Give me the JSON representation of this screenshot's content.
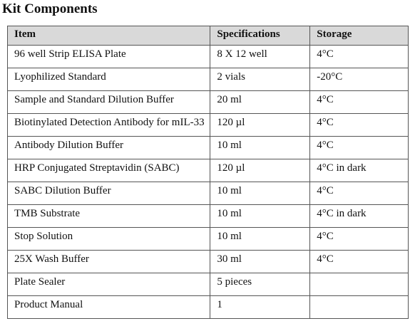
{
  "header": {
    "title": "Kit Components"
  },
  "table": {
    "columns": [
      "Item",
      "Specifications",
      "Storage"
    ],
    "rows": [
      [
        "96 well Strip ELISA Plate",
        "8 X 12 well",
        "4°C"
      ],
      [
        "Lyophilized Standard",
        "2 vials",
        "-20°C"
      ],
      [
        "Sample and Standard Dilution Buffer",
        "20 ml",
        "4°C"
      ],
      [
        "Biotinylated Detection Antibody for mIL-33",
        "120 µl",
        "4°C"
      ],
      [
        "Antibody Dilution Buffer",
        "10 ml",
        "4°C"
      ],
      [
        "HRP Conjugated Streptavidin (SABC)",
        "120 µl",
        "4°C in dark"
      ],
      [
        "SABC Dilution Buffer",
        "10 ml",
        "4°C"
      ],
      [
        "TMB Substrate",
        "10 ml",
        "4°C in dark"
      ],
      [
        "Stop Solution",
        "10 ml",
        "4°C"
      ],
      [
        "25X Wash Buffer",
        "30 ml",
        "4°C"
      ],
      [
        "Plate Sealer",
        "5 pieces",
        null
      ],
      [
        "Product Manual",
        "1",
        null
      ]
    ]
  }
}
